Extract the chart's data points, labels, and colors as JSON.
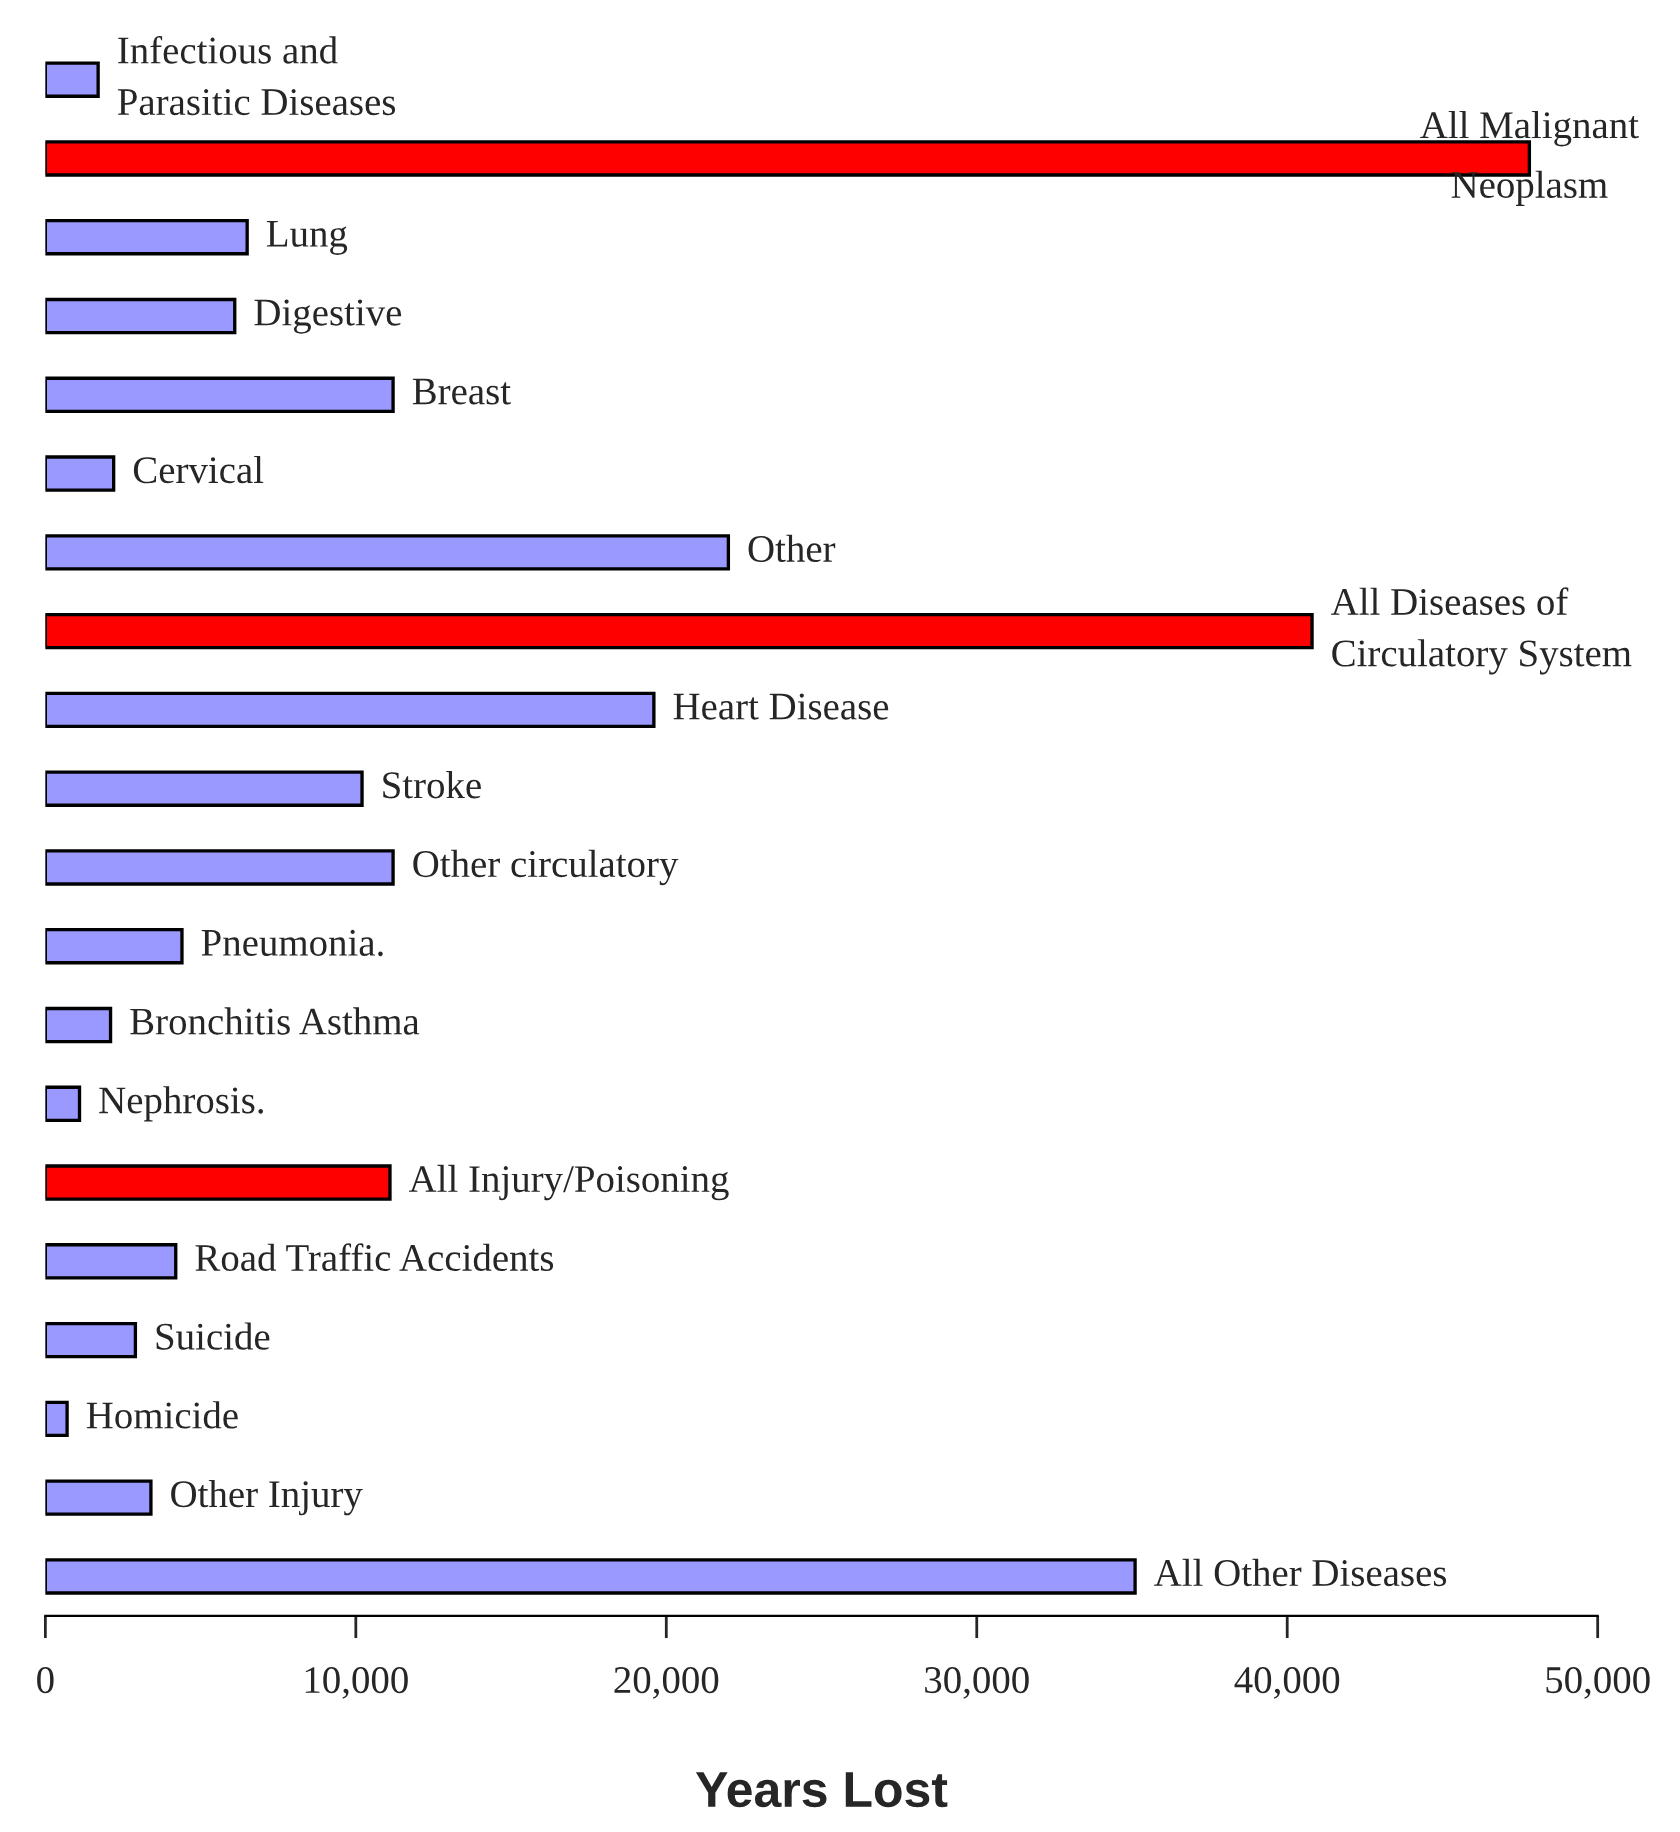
{
  "chart_data": {
    "type": "bar",
    "orientation": "horizontal",
    "xlabel": "Years Lost",
    "categories": [
      "Infectious and\nParasitic Diseases",
      "All Malignant\nNeoplasm",
      "Lung",
      "Digestive",
      "Breast",
      "Cervical",
      "Other",
      "All Diseases of\nCirculatory System",
      "Heart Disease",
      "Stroke",
      "Other circulatory",
      "Pneumonia.",
      "Bronchitis Asthma",
      "Nephrosis.",
      "All Injury/Poisoning",
      "Road Traffic Accidents",
      "Suicide",
      "Homicide",
      "Other Injury",
      "All Other Diseases"
    ],
    "values": [
      1700,
      47800,
      6500,
      6100,
      11200,
      2200,
      22000,
      40800,
      19600,
      10200,
      11200,
      4400,
      2100,
      1100,
      11100,
      4200,
      2900,
      700,
      3400,
      35100
    ],
    "colors": [
      "#9999ff",
      "#ff0000",
      "#9999ff",
      "#9999ff",
      "#9999ff",
      "#9999ff",
      "#9999ff",
      "#ff0000",
      "#9999ff",
      "#9999ff",
      "#9999ff",
      "#9999ff",
      "#9999ff",
      "#9999ff",
      "#ff0000",
      "#9999ff",
      "#9999ff",
      "#9999ff",
      "#9999ff",
      "#9999ff"
    ],
    "xlim": [
      0,
      50000
    ],
    "xticks": [
      {
        "value": 0,
        "label": "0"
      },
      {
        "value": 10000,
        "label": "10,000"
      },
      {
        "value": 20000,
        "label": "20,000"
      },
      {
        "value": 30000,
        "label": "30,000"
      },
      {
        "value": 40000,
        "label": "40,000"
      },
      {
        "value": 50000,
        "label": "50,000"
      }
    ],
    "tick_labels": "x",
    "grid": false,
    "legend": false
  }
}
